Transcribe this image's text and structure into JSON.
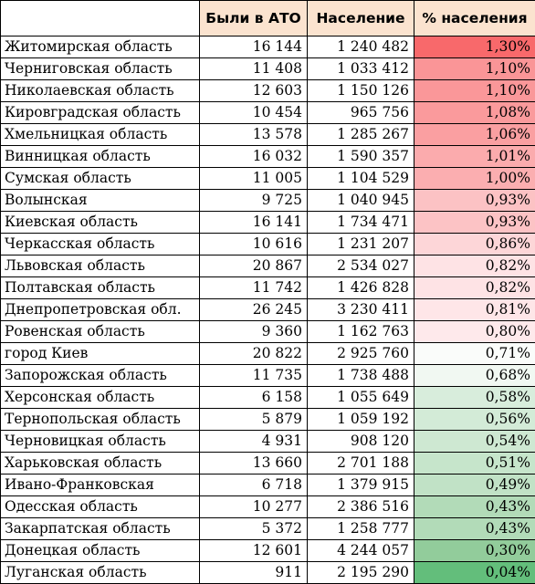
{
  "table": {
    "headers": [
      "",
      "Были в АТО",
      "Население",
      "% населения"
    ],
    "rows": [
      {
        "region": "Житомирская область",
        "ato": "16 144",
        "population": "1 240 482",
        "percent": "1,30%",
        "color": "#f8696b"
      },
      {
        "region": "Черниговская область",
        "ato": "11 408",
        "population": "1 033 412",
        "percent": "1,10%",
        "color": "#fa9597"
      },
      {
        "region": "Николаевская область",
        "ato": "12 603",
        "population": "1 150 126",
        "percent": "1,10%",
        "color": "#fa9799"
      },
      {
        "region": "Кировградская область",
        "ato": "10 454",
        "population": "965 756",
        "percent": "1,08%",
        "color": "#fa9a9c"
      },
      {
        "region": "Хмельницкая область",
        "ato": "13 578",
        "population": "1 285 267",
        "percent": "1,06%",
        "color": "#fa9fa1"
      },
      {
        "region": "Винницкая область",
        "ato": "16 032",
        "population": "1 590 357",
        "percent": "1,01%",
        "color": "#fbabad"
      },
      {
        "region": "Сумская область",
        "ato": "11 005",
        "population": "1 104 529",
        "percent": "1,00%",
        "color": "#fbaeb0"
      },
      {
        "region": "Волынская",
        "ato": "9 725",
        "population": "1 040 945",
        "percent": "0,93%",
        "color": "#fcc2c4"
      },
      {
        "region": "Киевская область",
        "ato": "16 141",
        "population": "1 734 471",
        "percent": "0,93%",
        "color": "#fcc3c5"
      },
      {
        "region": "Черкасская область",
        "ato": "10 616",
        "population": "1 231 207",
        "percent": "0,86%",
        "color": "#fdd6d8"
      },
      {
        "region": "Львовская область",
        "ato": "20 867",
        "population": "2 534 027",
        "percent": "0,82%",
        "color": "#fee3e5"
      },
      {
        "region": "Полтавская область",
        "ato": "11 742",
        "population": "1 426 828",
        "percent": "0,82%",
        "color": "#fee3e5"
      },
      {
        "region": "Днепропетровская обл.",
        "ato": "26 245",
        "population": "3 230 411",
        "percent": "0,81%",
        "color": "#fee6e8"
      },
      {
        "region": "Ровенская область",
        "ato": "9 360",
        "population": "1 162 763",
        "percent": "0,80%",
        "color": "#fee9eb"
      },
      {
        "region": "город Киев",
        "ato": "20 822",
        "population": "2 925 760",
        "percent": "0,71%",
        "color": "#fafcfa"
      },
      {
        "region": "Запорожская область",
        "ato": "11 735",
        "population": "1 738 488",
        "percent": "0,68%",
        "color": "#f1f8f2"
      },
      {
        "region": "Херсонская область",
        "ato": "6 158",
        "population": "1 055 649",
        "percent": "0,58%",
        "color": "#d8eddc"
      },
      {
        "region": "Тернопольская область",
        "ato": "5 879",
        "population": "1 059 192",
        "percent": "0,56%",
        "color": "#d3ebd7"
      },
      {
        "region": "Черновицкая область",
        "ato": "4 931",
        "population": "908 120",
        "percent": "0,54%",
        "color": "#cee8d2"
      },
      {
        "region": "Харьковская область",
        "ato": "13 660",
        "population": "2 701 188",
        "percent": "0,51%",
        "color": "#c6e5cb"
      },
      {
        "region": "Ивано-Франковская",
        "ato": "6 718",
        "population": "1 379 915",
        "percent": "0,49%",
        "color": "#c1e2c6"
      },
      {
        "region": "Одесская область",
        "ato": "10 277",
        "population": "2 386 516",
        "percent": "0,43%",
        "color": "#b2dbb8"
      },
      {
        "region": "Закарпатская область",
        "ato": "5 372",
        "population": "1 258 777",
        "percent": "0,43%",
        "color": "#b2dbb8"
      },
      {
        "region": "Донецкая область",
        "ato": "12 601",
        "population": "4 244 057",
        "percent": "0,30%",
        "color": "#92cc9b"
      },
      {
        "region": "Луганская область",
        "ato": "911",
        "population": "2 195 290",
        "percent": "0,04%",
        "color": "#63be7b"
      }
    ]
  }
}
